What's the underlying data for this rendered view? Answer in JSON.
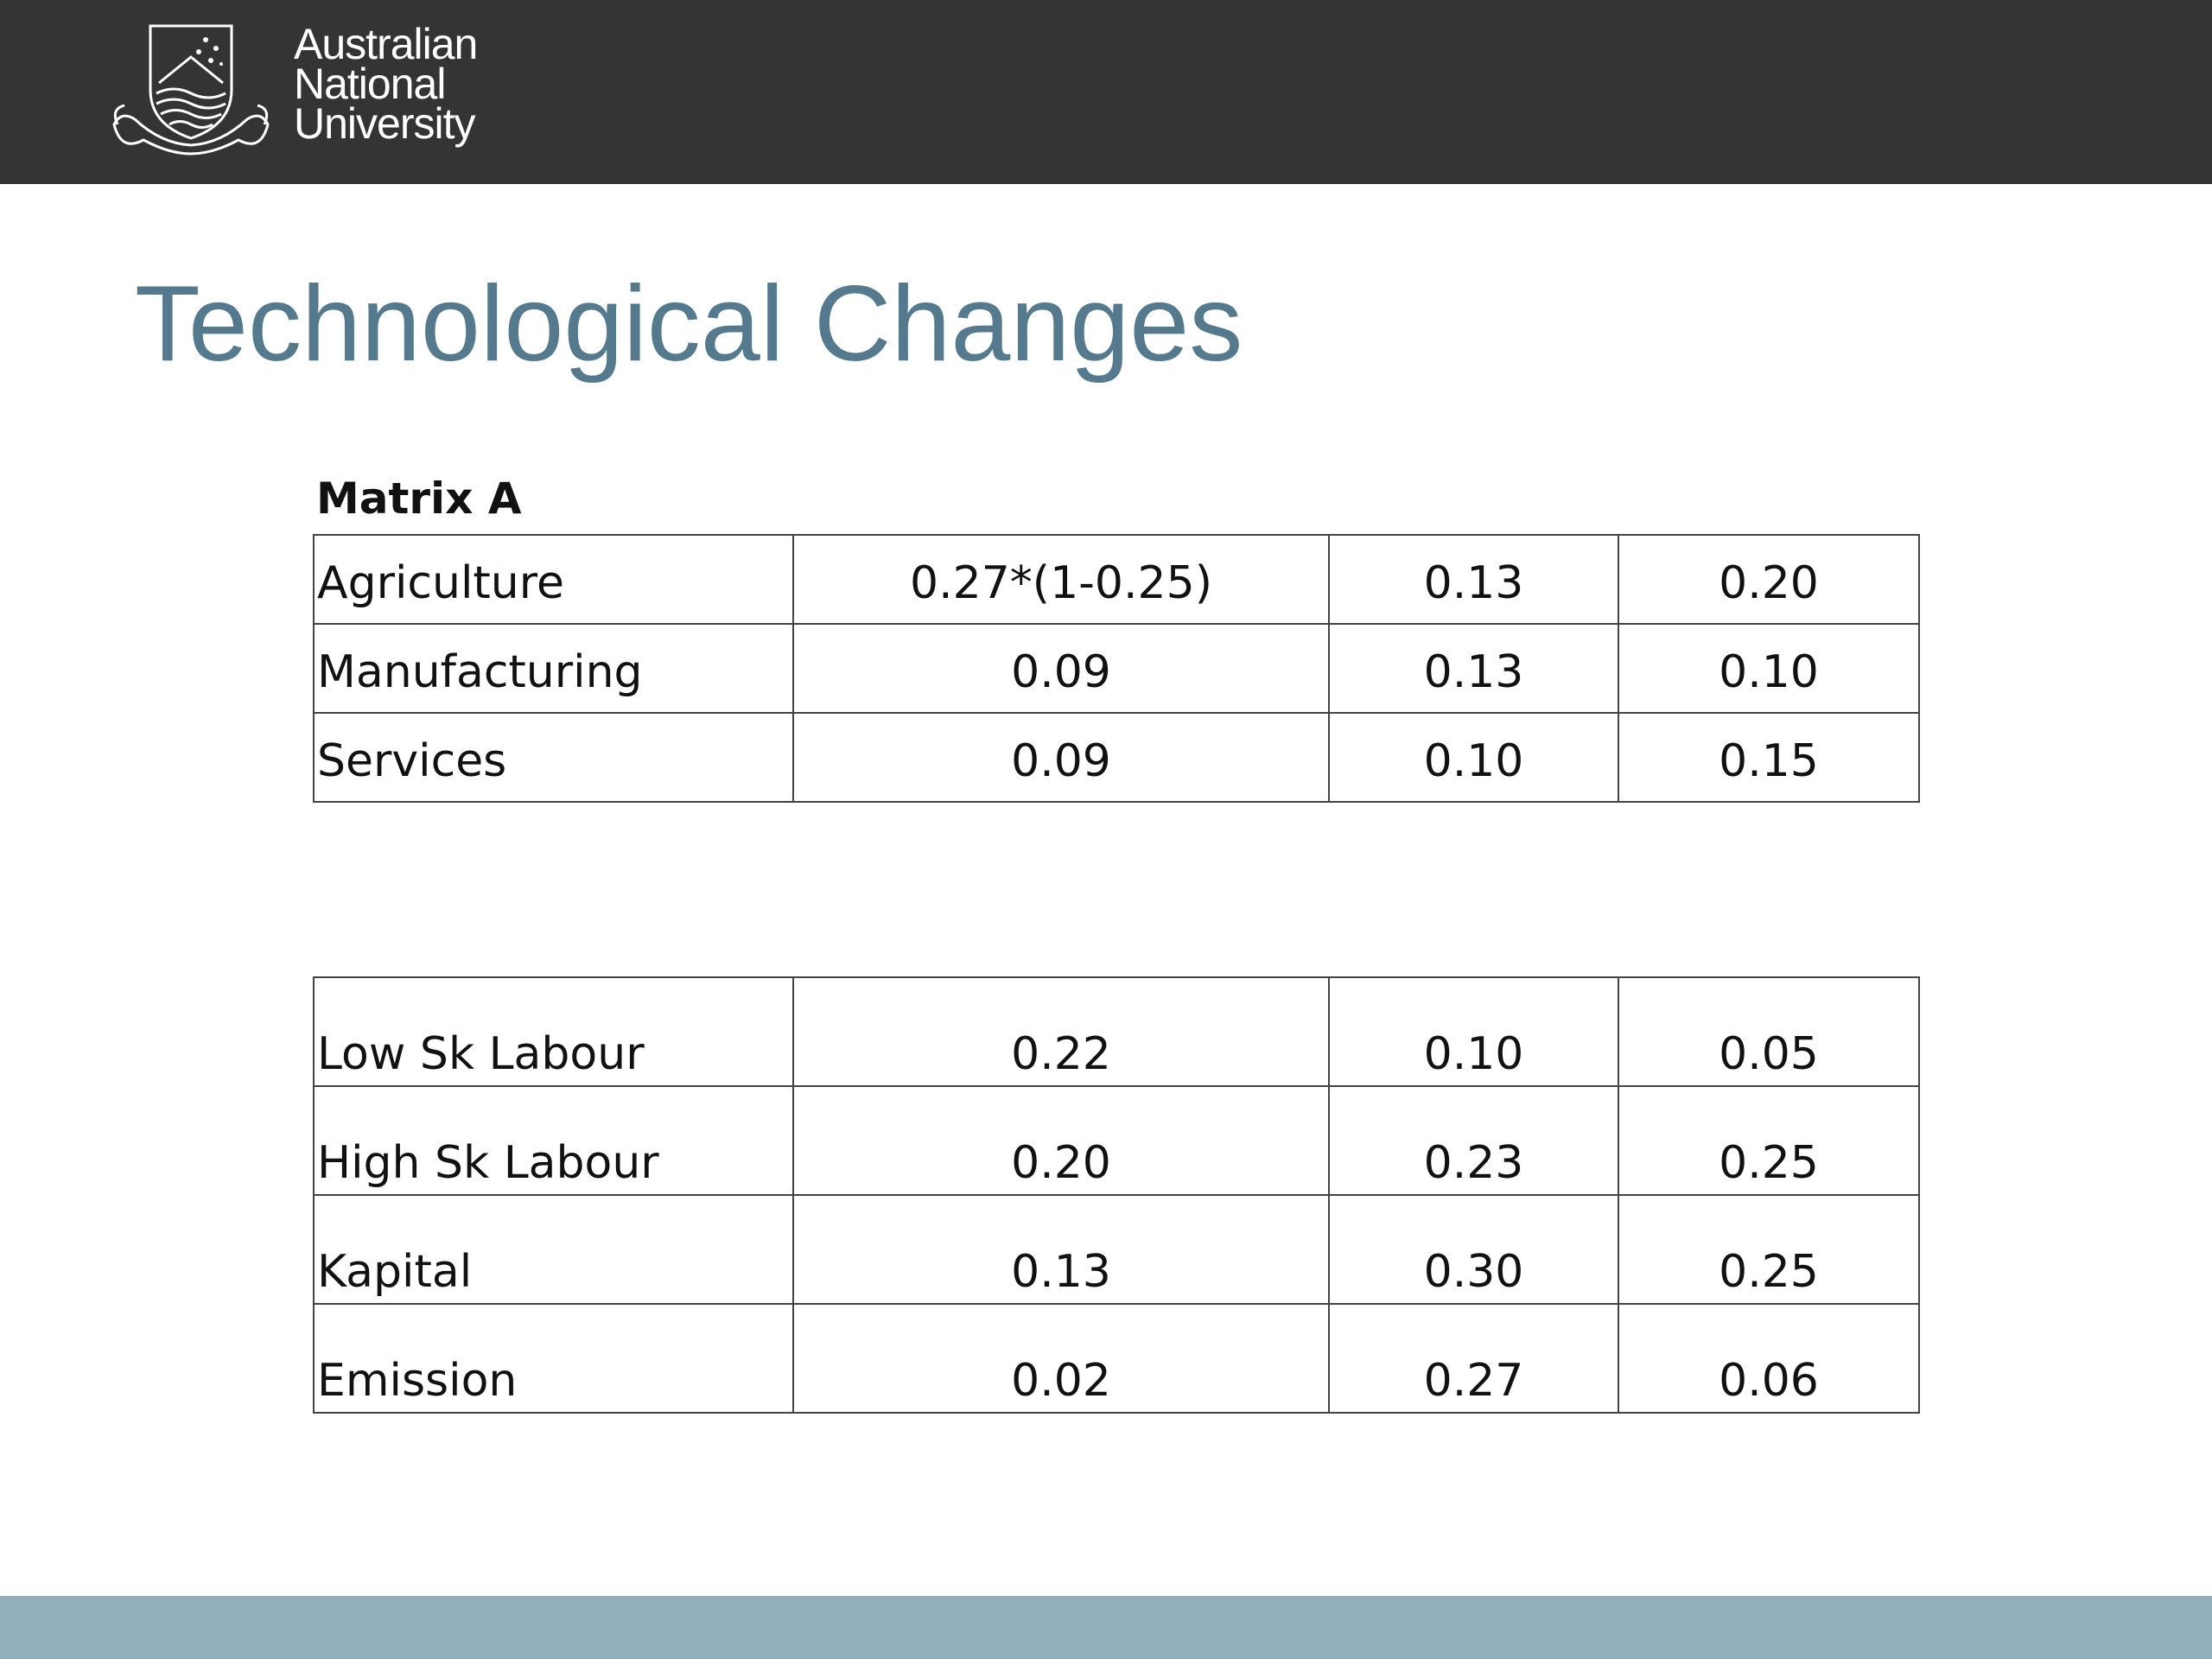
{
  "header": {
    "logo_icon": "anu-crest-icon",
    "wordmark_lines": [
      "Australian",
      "National",
      "University"
    ],
    "colors": {
      "background": "#343434",
      "text": "#ffffff"
    }
  },
  "slide": {
    "title": "Technological Changes",
    "title_color": "#557a8e",
    "matrix_label": "Matrix A"
  },
  "table_a": {
    "rows": [
      {
        "label": "Agriculture",
        "values": [
          "0.27*(1-0.25)",
          "0.13",
          "0.20"
        ]
      },
      {
        "label": "Manufacturing",
        "values": [
          "0.09",
          "0.13",
          "0.10"
        ]
      },
      {
        "label": "Services",
        "values": [
          "0.09",
          "0.10",
          "0.15"
        ]
      }
    ]
  },
  "table_b": {
    "rows": [
      {
        "label": "Low Sk Labour",
        "values": [
          "0.22",
          "0.10",
          "0.05"
        ]
      },
      {
        "label": "High Sk Labour",
        "values": [
          "0.20",
          "0.23",
          "0.25"
        ]
      },
      {
        "label": "Kapital",
        "values": [
          "0.13",
          "0.30",
          "0.25"
        ]
      },
      {
        "label": "Emission",
        "values": [
          "0.02",
          "0.27",
          "0.06"
        ]
      }
    ]
  },
  "footer": {
    "color": "#93afbc"
  }
}
